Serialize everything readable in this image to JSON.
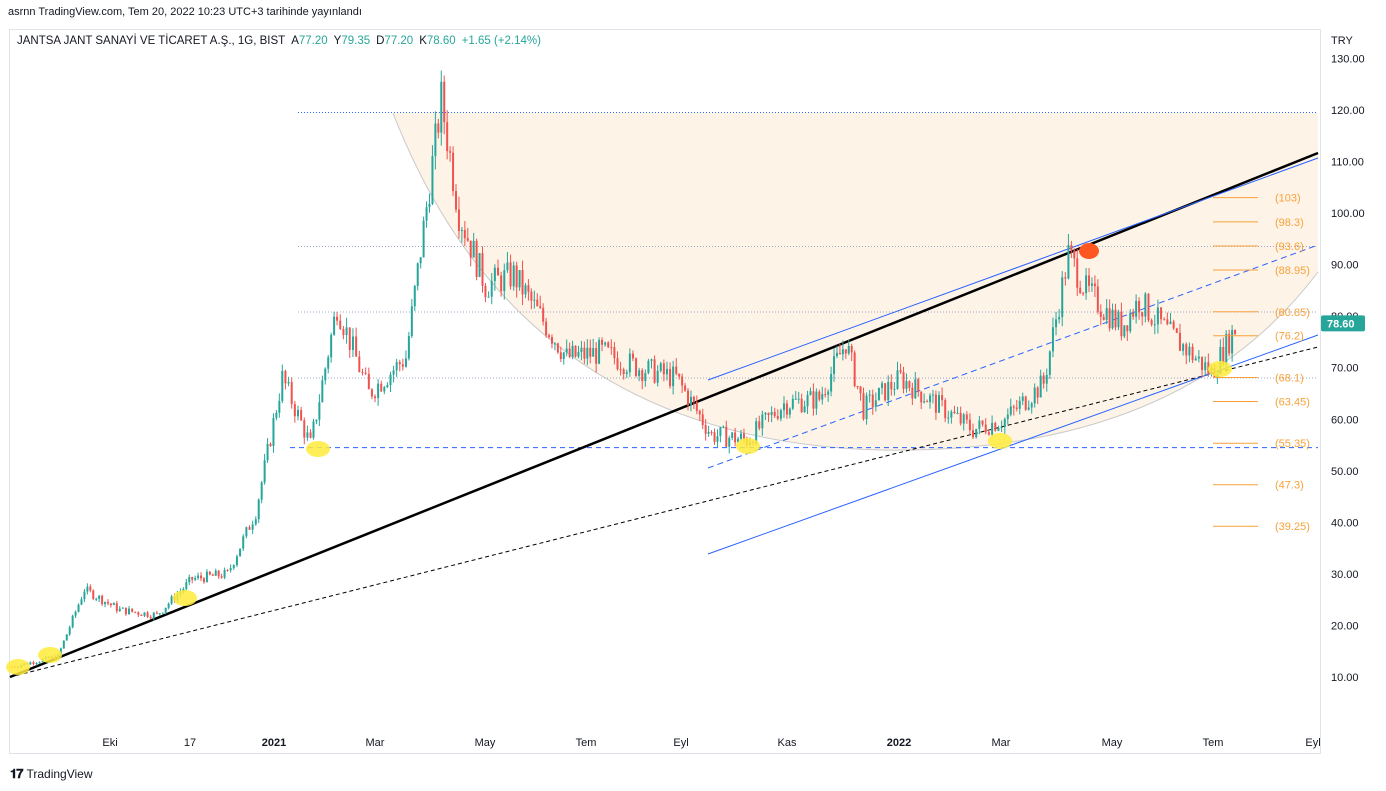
{
  "header": {
    "published": "asrnn TradingView.com, Tem 20, 2022 10:23 UTC+3 tarihinde yayınlandı"
  },
  "legend": {
    "symbol": "JANTSA JANT SANAYİ VE TİCARET A.Ş., 1G, BIST",
    "open_label": "A",
    "open": "77.20",
    "high_label": "Y",
    "high": "79.35",
    "low_label": "D",
    "low": "77.20",
    "close_label": "K",
    "close": "78.60",
    "change": "+1.65 (+2.14%)"
  },
  "footer": {
    "brand": "TradingView"
  },
  "colors": {
    "up": "#26a69a",
    "down": "#ef5350",
    "fib": "#f7a23b",
    "blue": "#2962ff",
    "price_badge": "#26a69a",
    "highlight": "#ffeb3b"
  },
  "chart_data": {
    "type": "candlestick",
    "currency": "TRY",
    "y_ticks": [
      "10.00",
      "20.00",
      "30.00",
      "40.00",
      "50.00",
      "60.00",
      "70.00",
      "80.00",
      "90.00",
      "100.00",
      "110.00",
      "120.00",
      "130.00"
    ],
    "ylim": [
      0,
      132
    ],
    "x_ticks": [
      "Eki",
      "17",
      "2021",
      "Mar",
      "May",
      "Tem",
      "Eyl",
      "Kas",
      "2022",
      "Mar",
      "May",
      "Tem",
      "Eyl"
    ],
    "last_price": "78.60",
    "close_path": [
      [
        "2020-08-25",
        12
      ],
      [
        "2020-09-20",
        14
      ],
      [
        "2020-10-05",
        27
      ],
      [
        "2020-10-25",
        23
      ],
      [
        "2020-11-15",
        22
      ],
      [
        "2020-12-05",
        29
      ],
      [
        "2020-12-25",
        30
      ],
      [
        "2021-01-10",
        42
      ],
      [
        "2021-01-25",
        68
      ],
      [
        "2021-02-10",
        55
      ],
      [
        "2021-02-25",
        82
      ],
      [
        "2021-03-15",
        65
      ],
      [
        "2021-04-05",
        72
      ],
      [
        "2021-04-25",
        122
      ],
      [
        "2021-05-05",
        100
      ],
      [
        "2021-05-20",
        86
      ],
      [
        "2021-06-05",
        88
      ],
      [
        "2021-06-20",
        80
      ],
      [
        "2021-07-05",
        72
      ],
      [
        "2021-07-25",
        73
      ],
      [
        "2021-08-15",
        70
      ],
      [
        "2021-09-05",
        68
      ],
      [
        "2021-09-25",
        57
      ],
      [
        "2021-10-15",
        56
      ],
      [
        "2021-11-05",
        63
      ],
      [
        "2021-11-25",
        64
      ],
      [
        "2021-12-10",
        75
      ],
      [
        "2021-12-20",
        62
      ],
      [
        "2022-01-10",
        68
      ],
      [
        "2022-01-30",
        63
      ],
      [
        "2022-02-20",
        58
      ],
      [
        "2022-03-10",
        60
      ],
      [
        "2022-04-01",
        67
      ],
      [
        "2022-04-15",
        92
      ],
      [
        "2022-04-25",
        85
      ],
      [
        "2022-05-15",
        78
      ],
      [
        "2022-05-25",
        83
      ],
      [
        "2022-06-10",
        77
      ],
      [
        "2022-07-05",
        69
      ],
      [
        "2022-07-20",
        78.6
      ]
    ],
    "fib_levels": [
      {
        "label": "(103)",
        "value": 103
      },
      {
        "label": "(98.3)",
        "value": 98.3
      },
      {
        "label": "(93.6)",
        "value": 93.6
      },
      {
        "label": "(88.95)",
        "value": 88.95
      },
      {
        "label": "(80.85)",
        "value": 80.85
      },
      {
        "label": "(76.2)",
        "value": 76.2
      },
      {
        "label": "(68.1)",
        "value": 68.1
      },
      {
        "label": "(63.45)",
        "value": 63.45
      },
      {
        "label": "(55.35)",
        "value": 55.35
      },
      {
        "label": "(47.3)",
        "value": 47.3
      },
      {
        "label": "(39.25)",
        "value": 39.25
      }
    ],
    "horizontal_levels": [
      119.5,
      93.5,
      80.8,
      68,
      54.5
    ]
  }
}
